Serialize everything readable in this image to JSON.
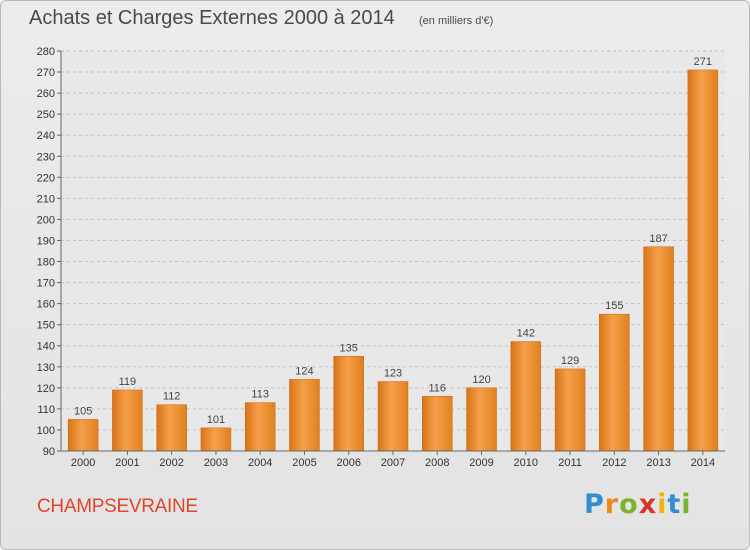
{
  "header": {
    "title": "Achats et Charges Externes 2000 à 2014",
    "unit": "(en milliers d'€)"
  },
  "footer": {
    "commune": "CHAMPSEVRAINE",
    "logo_letters": [
      "P",
      "r",
      "o",
      "x",
      "i",
      "t",
      "i"
    ],
    "logo_colors": [
      "#2f8fd1",
      "#e98a1f",
      "#78b52c",
      "#d9342b",
      "#f0b30f",
      "#2f8fd1",
      "#78b52c"
    ]
  },
  "colors": {
    "bar_light": "#f6a04a",
    "bar_dark": "#d87416",
    "title": "#4a4a4a",
    "commune": "#e0452c"
  },
  "chart_data": {
    "type": "bar",
    "title": "Achats et Charges Externes 2000 à 2014",
    "subtitle": "(en milliers d'€)",
    "categories": [
      "2000",
      "2001",
      "2002",
      "2003",
      "2004",
      "2005",
      "2006",
      "2007",
      "2008",
      "2009",
      "2010",
      "2011",
      "2012",
      "2013",
      "2014"
    ],
    "values": [
      105,
      119,
      112,
      101,
      113,
      124,
      135,
      123,
      116,
      120,
      142,
      129,
      155,
      187,
      271
    ],
    "ylim": [
      90,
      280
    ],
    "yticks": [
      90,
      100,
      110,
      120,
      130,
      140,
      150,
      160,
      170,
      180,
      190,
      200,
      210,
      220,
      230,
      240,
      250,
      260,
      270,
      280
    ],
    "grid": "horizontal dashed",
    "legend": "none"
  }
}
